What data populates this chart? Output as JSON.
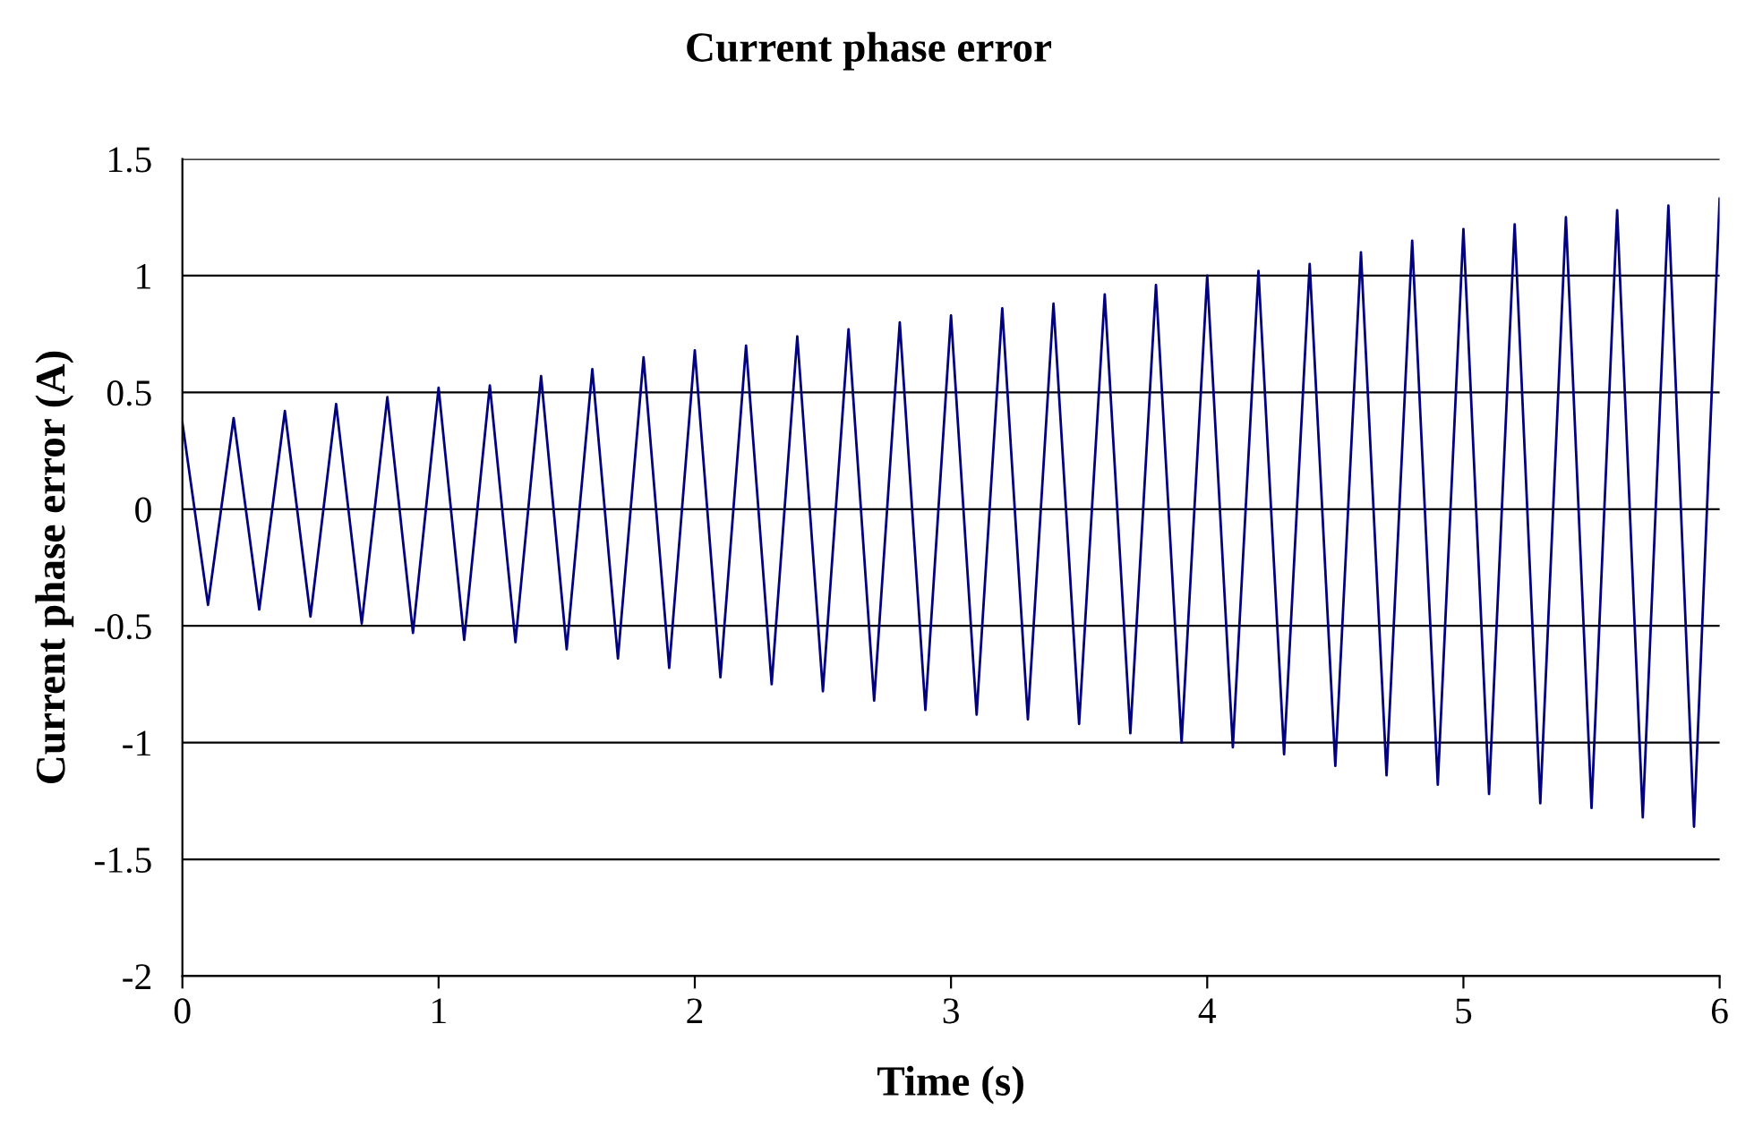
{
  "chart_data": {
    "type": "line",
    "title": "Current phase error",
    "xlabel": "Time (s)",
    "ylabel": "Current phase error (A)",
    "x": [
      0.0,
      0.1,
      0.2,
      0.3,
      0.4,
      0.5,
      0.6,
      0.7,
      0.8,
      0.9,
      1.0,
      1.1,
      1.2,
      1.3,
      1.4,
      1.5,
      1.6,
      1.7,
      1.8,
      1.9,
      2.0,
      2.1,
      2.2,
      2.3,
      2.4,
      2.5,
      2.6,
      2.7,
      2.8,
      2.9,
      3.0,
      3.1,
      3.2,
      3.3,
      3.4,
      3.5,
      3.6,
      3.7,
      3.8,
      3.9,
      4.0,
      4.1,
      4.2,
      4.3,
      4.4,
      4.5,
      4.6,
      4.7,
      4.8,
      4.9,
      5.0,
      5.1,
      5.2,
      5.3,
      5.4,
      5.5,
      5.6,
      5.7,
      5.8,
      5.9,
      6.0
    ],
    "series": [
      {
        "color": "#000080",
        "values": [
          0.37,
          -0.41,
          0.39,
          -0.43,
          0.42,
          -0.46,
          0.45,
          -0.49,
          0.48,
          -0.53,
          0.52,
          -0.56,
          0.53,
          -0.57,
          0.57,
          -0.6,
          0.6,
          -0.64,
          0.65,
          -0.68,
          0.68,
          -0.72,
          0.7,
          -0.75,
          0.74,
          -0.78,
          0.77,
          -0.82,
          0.8,
          -0.86,
          0.83,
          -0.88,
          0.86,
          -0.9,
          0.88,
          -0.92,
          0.92,
          -0.96,
          0.96,
          -1.0,
          1.0,
          -1.02,
          1.02,
          -1.05,
          1.05,
          -1.1,
          1.1,
          -1.14,
          1.15,
          -1.18,
          1.2,
          -1.22,
          1.22,
          -1.26,
          1.25,
          -1.28,
          1.28,
          -1.32,
          1.3,
          -1.36,
          1.33
        ]
      }
    ],
    "xlim": [
      0,
      6
    ],
    "xticks": [
      0,
      1,
      2,
      3,
      4,
      5,
      6
    ],
    "ylim": [
      -2,
      1.5
    ],
    "yticks": [
      -2,
      -1.5,
      -1,
      -0.5,
      0,
      0.5,
      1,
      1.5
    ],
    "grid": "y"
  }
}
